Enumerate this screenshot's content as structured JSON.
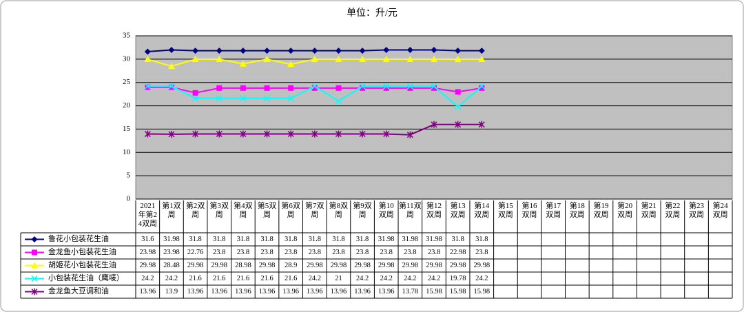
{
  "chart_data": {
    "type": "line",
    "title": "单位：升/元",
    "categories": [
      "2021年第24双周",
      "第1双周",
      "第2双周",
      "第3双周",
      "第4双周",
      "第5双周",
      "第6双周",
      "第7双周",
      "第8双周",
      "第9双周",
      "第10双周",
      "第11双周",
      "第12双周",
      "第13双周",
      "第14双周",
      "第15双周",
      "第16双周",
      "第17双周",
      "第18双周",
      "第19双周",
      "第20双周",
      "第21双周",
      "第22双周",
      "第23双周",
      "第24双周"
    ],
    "series": [
      {
        "name": "鲁花小包装花生油",
        "color": "#000080",
        "marker": "diamond",
        "values": [
          31.6,
          31.98,
          31.8,
          31.8,
          31.8,
          31.8,
          31.8,
          31.8,
          31.8,
          31.8,
          31.98,
          31.98,
          31.98,
          31.8,
          31.8,
          null,
          null,
          null,
          null,
          null,
          null,
          null,
          null,
          null,
          null
        ]
      },
      {
        "name": "金龙鱼小包装花生油",
        "color": "#ff00ff",
        "marker": "square",
        "values": [
          23.98,
          23.98,
          22.76,
          23.8,
          23.8,
          23.8,
          23.8,
          23.8,
          23.8,
          23.8,
          23.8,
          23.8,
          23.8,
          22.98,
          23.8,
          null,
          null,
          null,
          null,
          null,
          null,
          null,
          null,
          null,
          null
        ]
      },
      {
        "name": "胡姬花小包装花生油",
        "color": "#ffff00",
        "marker": "triangle",
        "values": [
          29.98,
          28.48,
          29.98,
          29.98,
          28.98,
          29.98,
          28.9,
          29.98,
          29.98,
          29.98,
          29.98,
          29.98,
          29.98,
          29.98,
          29.98,
          null,
          null,
          null,
          null,
          null,
          null,
          null,
          null,
          null,
          null
        ]
      },
      {
        "name": "小包装花生油（鹰唛）",
        "color": "#00ffff",
        "marker": "x",
        "values": [
          24.2,
          24.2,
          21.6,
          21.6,
          21.6,
          21.6,
          21.6,
          24.2,
          21,
          24.2,
          24.2,
          24.2,
          24.2,
          19.78,
          24.2,
          null,
          null,
          null,
          null,
          null,
          null,
          null,
          null,
          null,
          null
        ]
      },
      {
        "name": "金龙鱼大豆调和油",
        "color": "#800080",
        "marker": "star",
        "values": [
          13.96,
          13.9,
          13.96,
          13.96,
          13.96,
          13.96,
          13.96,
          13.96,
          13.96,
          13.96,
          13.96,
          13.78,
          15.98,
          15.98,
          15.98,
          null,
          null,
          null,
          null,
          null,
          null,
          null,
          null,
          null,
          null
        ]
      }
    ],
    "ylim": [
      0,
      35
    ],
    "yticks": [
      0,
      5,
      10,
      15,
      20,
      25,
      30,
      35
    ],
    "grid": true
  }
}
